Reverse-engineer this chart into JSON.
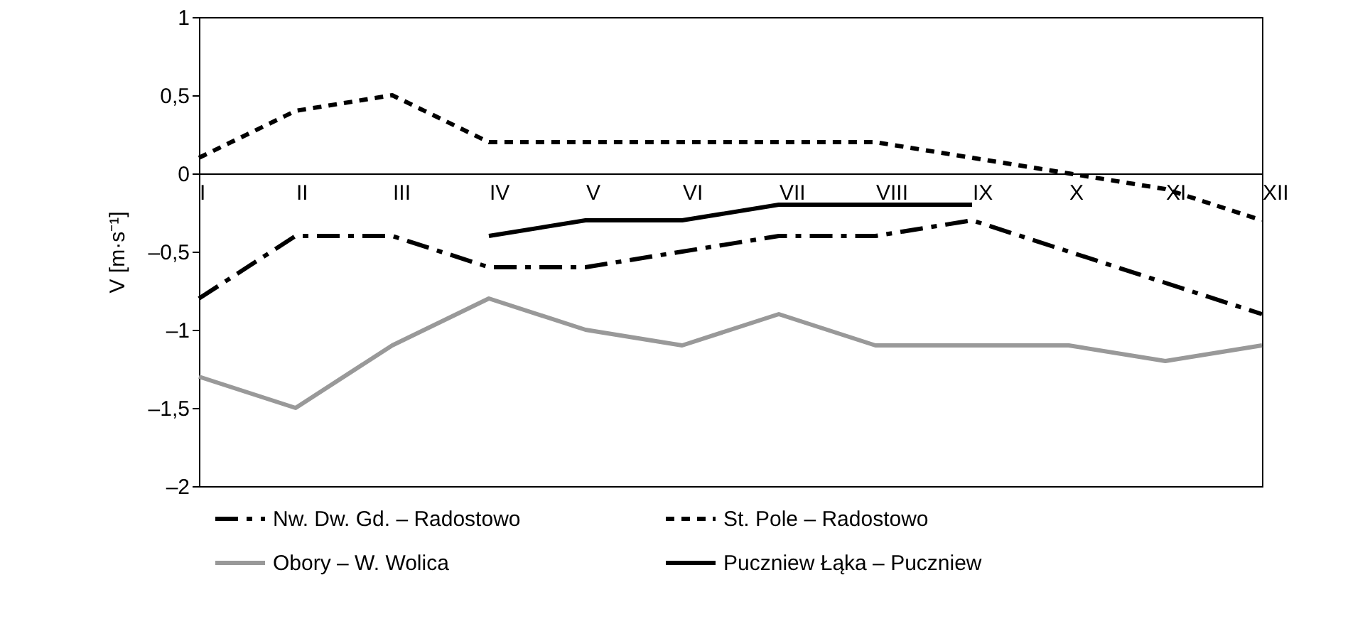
{
  "chart_data": {
    "type": "line",
    "ylabel": "V [m·s⁻¹]",
    "categories": [
      "I",
      "II",
      "III",
      "IV",
      "V",
      "VI",
      "VII",
      "VIII",
      "IX",
      "X",
      "XI",
      "XII"
    ],
    "series": [
      {
        "name": "Nw. Dw. Gd. – Radostowo",
        "color": "#000000",
        "line_style": "dashdot",
        "values": [
          -0.8,
          -0.4,
          -0.4,
          -0.6,
          -0.6,
          -0.5,
          -0.4,
          -0.4,
          -0.3,
          -0.5,
          -0.7,
          -0.9
        ]
      },
      {
        "name": "St. Pole – Radostowo",
        "color": "#000000",
        "line_style": "dashed",
        "values": [
          0.1,
          0.4,
          0.5,
          0.2,
          0.2,
          0.2,
          0.2,
          0.2,
          0.1,
          0,
          -0.1,
          -0.3
        ]
      },
      {
        "name": "Obory – W. Wolica",
        "color": "#999999",
        "line_style": "solid",
        "values": [
          -1.3,
          -1.5,
          -1.1,
          -0.8,
          -1.0,
          -1.1,
          -0.9,
          -1.1,
          -1.1,
          -1.1,
          -1.2,
          -1.1
        ]
      },
      {
        "name": "Puczniew Łąka – Puczniew",
        "color": "#000000",
        "line_style": "solid",
        "values": [
          null,
          null,
          null,
          -0.4,
          -0.3,
          -0.3,
          -0.2,
          -0.2,
          -0.2,
          null,
          null,
          null
        ]
      }
    ],
    "ylim": [
      -2,
      1
    ],
    "yticks": [
      {
        "value": -2,
        "label": "–2"
      },
      {
        "value": -1.5,
        "label": "–1,5"
      },
      {
        "value": -1,
        "label": "–1"
      },
      {
        "value": -0.5,
        "label": "–0,5"
      },
      0,
      {
        "value": 0.5,
        "label": "0,5"
      },
      1
    ],
    "grid": false,
    "legend": "bottom",
    "marker": "none"
  }
}
